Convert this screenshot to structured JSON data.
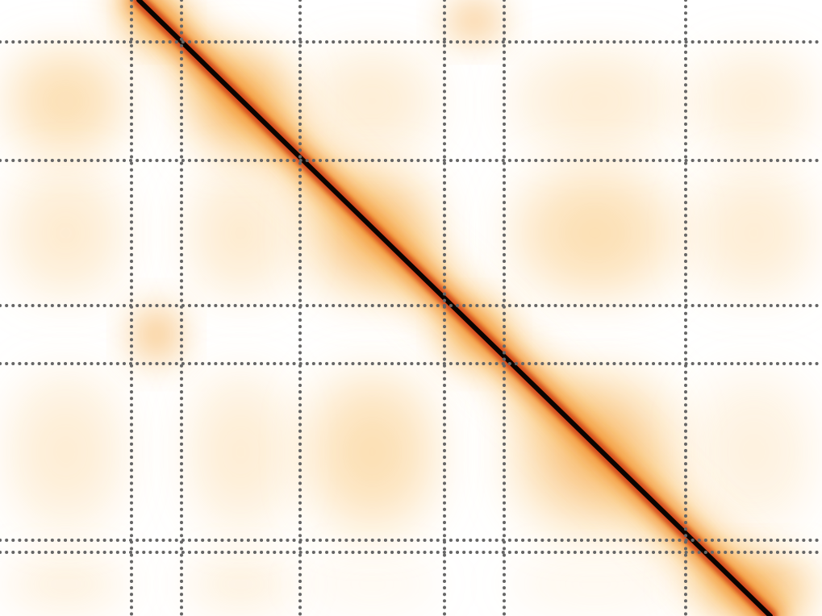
{
  "chart_data": {
    "type": "heatmap",
    "title": "",
    "xlabel": "",
    "ylabel": "",
    "legend": "none",
    "grid": true,
    "grid_style": "dotted",
    "colormap": [
      "#ffffff",
      "#fde6b4",
      "#f9bb5c",
      "#f08a24",
      "#d2401a",
      "#7a0a00",
      "#000000"
    ],
    "grid_color": "#666666",
    "matrix_extent": {
      "x": [
        0,
        1019
      ],
      "y": [
        0,
        764
      ]
    },
    "boundaries_x": [
      163,
      225,
      372,
      551,
      625,
      850
    ],
    "boundaries_y": [
      52,
      199,
      379,
      451,
      670,
      685
    ],
    "diagonal": {
      "start": [
        172,
        0
      ],
      "end": [
        955,
        764
      ],
      "note_points": [
        [
          225,
          52
        ],
        [
          372,
          199
        ],
        [
          551,
          379
        ],
        [
          625,
          451
        ],
        [
          850,
          675
        ]
      ]
    },
    "blocks": [
      {
        "id": "d1",
        "x": [
          163,
          225
        ],
        "y": [
          0,
          52
        ],
        "intensity": 0.55
      },
      {
        "id": "d2",
        "x": [
          225,
          372
        ],
        "y": [
          52,
          199
        ],
        "intensity": 0.5
      },
      {
        "id": "d3",
        "x": [
          372,
          551
        ],
        "y": [
          199,
          379
        ],
        "intensity": 0.45
      },
      {
        "id": "d4",
        "x": [
          551,
          625
        ],
        "y": [
          379,
          451
        ],
        "intensity": 0.55
      },
      {
        "id": "d5",
        "x": [
          625,
          850
        ],
        "y": [
          451,
          670
        ],
        "intensity": 0.45
      },
      {
        "id": "d6",
        "x": [
          850,
          1019
        ],
        "y": [
          685,
          764
        ],
        "intensity": 0.5
      },
      {
        "id": "o1",
        "x": [
          0,
          163
        ],
        "y": [
          52,
          199
        ],
        "intensity": 0.35
      },
      {
        "id": "o2",
        "x": [
          0,
          163
        ],
        "y": [
          199,
          379
        ],
        "intensity": 0.22
      },
      {
        "id": "o3",
        "x": [
          0,
          163
        ],
        "y": [
          451,
          670
        ],
        "intensity": 0.2
      },
      {
        "id": "o4",
        "x": [
          225,
          372
        ],
        "y": [
          199,
          379
        ],
        "intensity": 0.22
      },
      {
        "id": "o5",
        "x": [
          372,
          551
        ],
        "y": [
          52,
          199
        ],
        "intensity": 0.2
      },
      {
        "id": "o6",
        "x": [
          225,
          372
        ],
        "y": [
          451,
          670
        ],
        "intensity": 0.2
      },
      {
        "id": "o7",
        "x": [
          372,
          551
        ],
        "y": [
          451,
          670
        ],
        "intensity": 0.35
      },
      {
        "id": "o8",
        "x": [
          625,
          850
        ],
        "y": [
          52,
          199
        ],
        "intensity": 0.2
      },
      {
        "id": "o9",
        "x": [
          625,
          850
        ],
        "y": [
          199,
          379
        ],
        "intensity": 0.35
      },
      {
        "id": "o10",
        "x": [
          850,
          1019
        ],
        "y": [
          52,
          199
        ],
        "intensity": 0.18
      },
      {
        "id": "o11",
        "x": [
          850,
          1019
        ],
        "y": [
          199,
          379
        ],
        "intensity": 0.2
      },
      {
        "id": "o12",
        "x": [
          850,
          1019
        ],
        "y": [
          451,
          670
        ],
        "intensity": 0.15
      },
      {
        "id": "o13",
        "x": [
          0,
          163
        ],
        "y": [
          685,
          764
        ],
        "intensity": 0.15
      },
      {
        "id": "o14",
        "x": [
          225,
          372
        ],
        "y": [
          685,
          764
        ],
        "intensity": 0.15
      },
      {
        "id": "o15",
        "x": [
          163,
          225
        ],
        "y": [
          379,
          451
        ],
        "intensity": 0.55
      },
      {
        "id": "o16",
        "x": [
          551,
          625
        ],
        "y": [
          0,
          52
        ],
        "intensity": 0.5
      },
      {
        "id": "o17",
        "x": [
          372,
          551
        ],
        "y": [
          685,
          764
        ],
        "intensity": 0.08
      },
      {
        "id": "o18",
        "x": [
          625,
          850
        ],
        "y": [
          685,
          764
        ],
        "intensity": 0.1
      }
    ]
  }
}
